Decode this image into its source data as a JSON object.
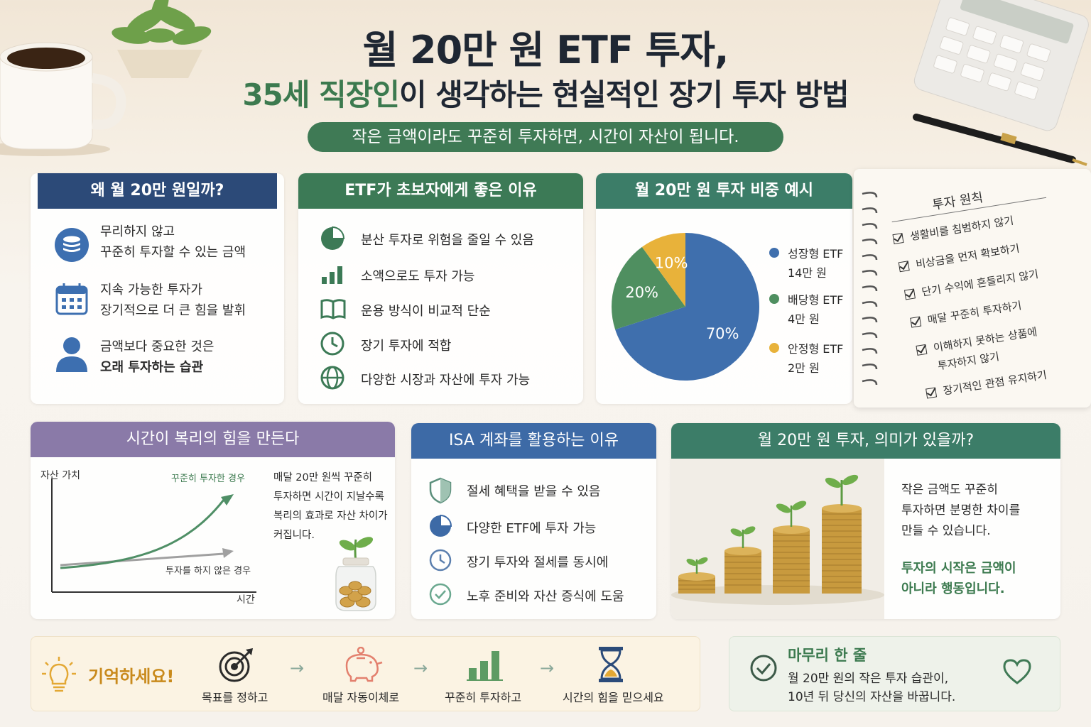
{
  "header": {
    "title_line1": "월 20만 원 ETF 투자,",
    "title_line2_highlight": "35세 직장인",
    "title_line2_rest": "이 생각하는 현실적인 장기 투자 방법",
    "tagline": "작은 금액이라도 꾸준히 투자하면, 시간이 자산이 됩니다."
  },
  "why_card": {
    "title": "왜 월 20만 원일까?",
    "items": [
      {
        "icon": "coins-icon",
        "line1": "무리하지 않고",
        "line2": "꾸준히 투자할 수 있는 금액"
      },
      {
        "icon": "calendar-icon",
        "line1": "지속 가능한 투자가",
        "line2": "장기적으로 더 큰 힘을 발휘"
      },
      {
        "icon": "person-icon",
        "line1": "금액보다 중요한 것은",
        "line2": "오래 투자하는 습관"
      }
    ]
  },
  "etf_card": {
    "title": "ETF가 초보자에게 좋은 이유",
    "items": [
      {
        "icon": "pie-icon",
        "text": "분산 투자로 위험을 줄일 수 있음"
      },
      {
        "icon": "bar-chart-icon",
        "text": "소액으로도 투자 가능"
      },
      {
        "icon": "book-icon",
        "text": "운용 방식이 비교적 단순"
      },
      {
        "icon": "clock-icon",
        "text": "장기 투자에 적합"
      },
      {
        "icon": "globe-icon",
        "text": "다양한 시장과 자산에 투자 가능"
      }
    ]
  },
  "allocation_card": {
    "title": "월 20만 원 투자 비중 예시",
    "legend": [
      {
        "name": "성장형 ETF",
        "amount": "14만 원",
        "color": "#3f6fad"
      },
      {
        "name": "배당형 ETF",
        "amount": "4만 원",
        "color": "#4f8f60"
      },
      {
        "name": "안정형 ETF",
        "amount": "2만 원",
        "color": "#e8b23a"
      }
    ]
  },
  "chart_data": [
    {
      "type": "pie",
      "categories": [
        "성장형 ETF",
        "배당형 ETF",
        "안정형 ETF"
      ],
      "values": [
        70,
        20,
        10
      ],
      "labels": [
        "70%",
        "20%",
        "10%"
      ],
      "colors": [
        "#3f6fad",
        "#4f8f60",
        "#e8b23a"
      ]
    },
    {
      "type": "line",
      "xlabel": "시간",
      "ylabel": "자산 가치",
      "series": [
        {
          "name": "꾸준히 투자한 경우",
          "trend": "exponential-growth",
          "color": "#4f8f66"
        },
        {
          "name": "투자를 하지 않은 경우",
          "trend": "flat-slight-rise",
          "color": "#a0a0a0"
        }
      ]
    }
  ],
  "principles": {
    "title": "투자 원칙",
    "items": [
      "생활비를 침범하지 않기",
      "비상금을 먼저 확보하기",
      "단기 수익에 흔들리지 않기",
      "매달 꾸준히 투자하기",
      "이해하지 못하는 상품에",
      "투자하지 않기",
      "장기적인 관점 유지하기"
    ]
  },
  "compound_card": {
    "title": "시간이 복리의 힘을 만든다",
    "description": [
      "매달 20만 원씩 꾸준히",
      "투자하면 시간이 지날수록",
      "복리의 효과로 자산 차이가",
      "커집니다."
    ]
  },
  "isa_card": {
    "title": "ISA 계좌를 활용하는 이유",
    "items": [
      {
        "icon": "shield-icon",
        "text": "절세 혜택을 받을 수 있음"
      },
      {
        "icon": "pie-icon",
        "text": "다양한 ETF에 투자 가능"
      },
      {
        "icon": "clock-icon",
        "text": "장기 투자와 절세를 동시에"
      },
      {
        "icon": "check-circle-icon",
        "text": "노후 준비와 자산 증식에 도움"
      }
    ]
  },
  "meaning_card": {
    "title": "월 20만 원 투자, 의미가 있을까?",
    "text": [
      "작은 금액도 꾸준히",
      "투자하면 분명한 차이를",
      "만들 수 있습니다."
    ],
    "highlight": [
      "투자의 시작은 금액이",
      "아니라 행동입니다."
    ]
  },
  "remember": {
    "label": "기억하세요!",
    "steps": [
      {
        "icon": "target-icon",
        "text": "목표를 정하고"
      },
      {
        "icon": "piggy-bank-icon",
        "text": "매달 자동이체로"
      },
      {
        "icon": "bar-chart-icon",
        "text": "꾸준히 투자하고"
      },
      {
        "icon": "hourglass-icon",
        "text": "시간의 힘을 믿으세요"
      }
    ]
  },
  "closing": {
    "title": "마무리 한 줄",
    "line1": "월 20만 원의 작은 투자 습관이,",
    "line2": "10년 뒤 당신의 자산을 바꿉니다."
  }
}
